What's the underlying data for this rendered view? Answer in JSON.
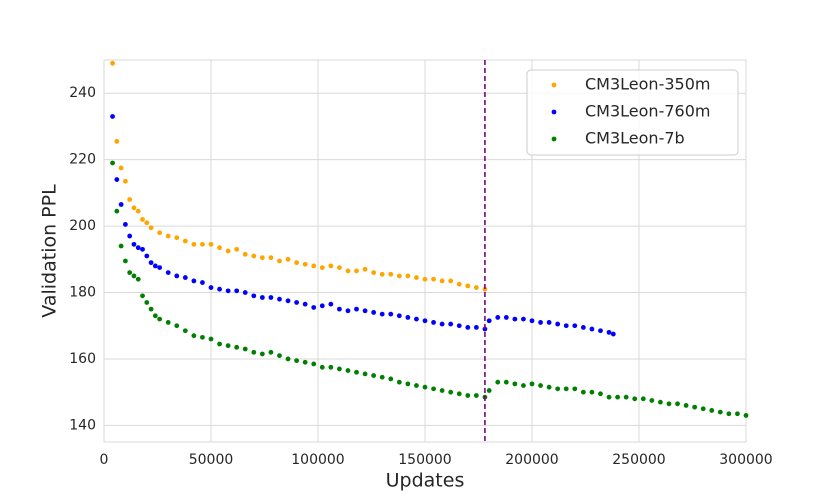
{
  "chart_data": {
    "type": "scatter",
    "x_label": "Updates",
    "y_label": "Validation PPL",
    "xlim": [
      0,
      300000
    ],
    "ylim": [
      135,
      250
    ],
    "xticks": [
      0,
      50000,
      100000,
      150000,
      200000,
      250000,
      300000
    ],
    "yticks": [
      140,
      160,
      180,
      200,
      220,
      240
    ],
    "grid": true,
    "legend": "upper right",
    "vline": 178000,
    "vline_color": "#800080",
    "series": [
      {
        "name": "CM3Leon-350m",
        "color": "#ffa500",
        "x": [
          4000,
          6000,
          8000,
          10000,
          12000,
          14000,
          16000,
          18000,
          20000,
          22000,
          26000,
          30000,
          34000,
          38000,
          42000,
          46000,
          50000,
          54000,
          58000,
          62000,
          66000,
          70000,
          74000,
          78000,
          82000,
          86000,
          90000,
          94000,
          98000,
          102000,
          106000,
          110000,
          114000,
          118000,
          122000,
          126000,
          130000,
          134000,
          138000,
          142000,
          146000,
          150000,
          154000,
          158000,
          162000,
          166000,
          170000,
          174000,
          178000
        ],
        "values": [
          249,
          225.5,
          217.5,
          213.5,
          208,
          205.5,
          204.5,
          202,
          201,
          199.5,
          198,
          197,
          196.5,
          195.5,
          194.5,
          194.5,
          194.5,
          193.5,
          192.5,
          193,
          191.5,
          191,
          190.5,
          190.5,
          189.5,
          190,
          189,
          188.5,
          188,
          187.5,
          188,
          187.5,
          186.5,
          186.5,
          187,
          186,
          185.5,
          185.5,
          185,
          185,
          184.5,
          184,
          184,
          183.5,
          183.5,
          182.5,
          182,
          181.5,
          181
        ]
      },
      {
        "name": "CM3Leon-760m",
        "color": "#0000ff",
        "x": [
          4000,
          6000,
          8000,
          10000,
          12000,
          14000,
          16000,
          18000,
          20000,
          22000,
          24000,
          26000,
          30000,
          34000,
          38000,
          42000,
          46000,
          50000,
          54000,
          58000,
          62000,
          66000,
          70000,
          74000,
          78000,
          82000,
          86000,
          90000,
          94000,
          98000,
          102000,
          106000,
          110000,
          114000,
          118000,
          122000,
          126000,
          130000,
          134000,
          138000,
          142000,
          146000,
          150000,
          154000,
          158000,
          162000,
          166000,
          170000,
          174000,
          178000,
          180000,
          184000,
          188000,
          192000,
          196000,
          200000,
          204000,
          208000,
          212000,
          216000,
          220000,
          224000,
          228000,
          232000,
          236000,
          238000
        ],
        "values": [
          233,
          214,
          206.5,
          200.5,
          197,
          194.5,
          193.5,
          193,
          191,
          189,
          188,
          187.5,
          186,
          185,
          184.5,
          183.5,
          183,
          181.5,
          181,
          180.5,
          180.5,
          180,
          179,
          178.5,
          178.5,
          178,
          177.5,
          177,
          176.5,
          175.5,
          176,
          176.5,
          175,
          174.5,
          175,
          174.5,
          174,
          173.5,
          173.5,
          173,
          172.5,
          172,
          171.5,
          171,
          170.5,
          170.5,
          170,
          169.5,
          169.5,
          169,
          171.5,
          172.5,
          172.5,
          172,
          172,
          171.5,
          171,
          171,
          170.5,
          170,
          170,
          169.5,
          169,
          168.5,
          168,
          167.5
        ]
      },
      {
        "name": "CM3Leon-7b",
        "color": "#008000",
        "x": [
          4000,
          6000,
          8000,
          10000,
          12000,
          14000,
          16000,
          18000,
          20000,
          22000,
          24000,
          26000,
          30000,
          34000,
          38000,
          42000,
          46000,
          50000,
          54000,
          58000,
          62000,
          66000,
          70000,
          74000,
          78000,
          82000,
          86000,
          90000,
          94000,
          98000,
          102000,
          106000,
          110000,
          114000,
          118000,
          122000,
          126000,
          130000,
          134000,
          138000,
          142000,
          146000,
          150000,
          154000,
          158000,
          162000,
          166000,
          170000,
          174000,
          178000,
          180000,
          184000,
          188000,
          192000,
          196000,
          200000,
          204000,
          208000,
          212000,
          216000,
          220000,
          224000,
          228000,
          232000,
          236000,
          240000,
          244000,
          248000,
          252000,
          256000,
          260000,
          264000,
          268000,
          272000,
          276000,
          280000,
          284000,
          288000,
          292000,
          296000,
          300000
        ],
        "values": [
          219,
          204.5,
          194,
          189.5,
          186,
          185,
          184,
          179,
          177,
          175,
          173,
          172,
          171,
          170,
          168.5,
          167,
          166.5,
          166,
          164.5,
          164,
          163.5,
          163,
          162,
          161.5,
          162,
          161,
          160,
          159.5,
          159,
          158.5,
          157.5,
          157.5,
          157,
          156.5,
          156,
          155.5,
          155,
          154.5,
          154,
          153,
          152.5,
          152,
          151.5,
          151,
          150.5,
          150,
          149.5,
          149,
          149,
          148.5,
          150.5,
          153,
          153,
          152.5,
          152,
          152.5,
          152,
          151.5,
          151,
          151,
          151,
          150,
          150,
          149.5,
          148.5,
          148.5,
          148.5,
          148,
          148,
          147.5,
          147,
          146.5,
          146.5,
          146,
          145.5,
          145,
          144.5,
          144,
          143.5,
          143.5,
          143
        ]
      }
    ]
  }
}
